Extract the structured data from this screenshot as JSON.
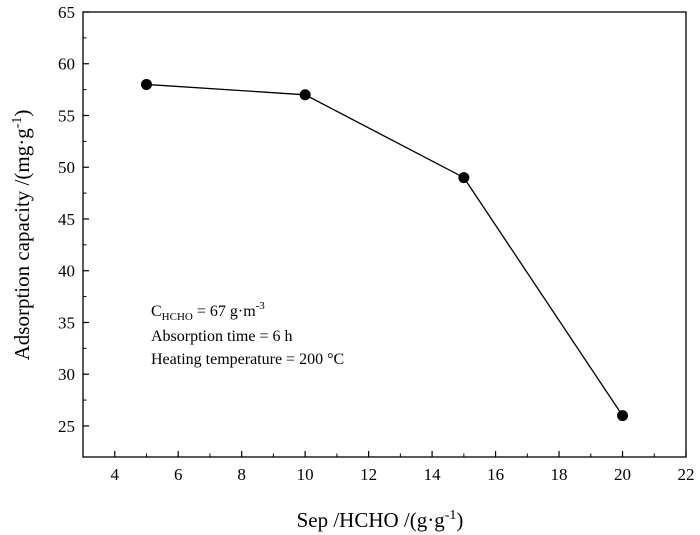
{
  "chart_data": {
    "type": "line",
    "x": [
      5,
      10,
      15,
      20
    ],
    "values": [
      58,
      57,
      49,
      26
    ],
    "xlabel": {
      "main": "Sep /HCHO /(g·g",
      "sup": "-1",
      "close": ")"
    },
    "ylabel": {
      "main": "Adsorption capacity /(mg·g",
      "sup": "-1",
      "close": ")"
    },
    "xlim": [
      3,
      22
    ],
    "ylim": [
      22,
      65
    ],
    "xticks": [
      4,
      6,
      8,
      10,
      12,
      14,
      16,
      18,
      20,
      22
    ],
    "yticks": [
      25,
      30,
      35,
      40,
      45,
      50,
      55,
      60,
      65
    ],
    "grid": false,
    "annotations": {
      "line1": {
        "base": "C",
        "sub": "HCHO",
        "mid": " = 67 g·m",
        "sup": "-3"
      },
      "line2": "Absorption time = 6 h",
      "line3": "Heating temperature = 200 °C"
    },
    "colors": {
      "line": "#000000",
      "marker": "#000000",
      "axis": "#000000"
    }
  }
}
